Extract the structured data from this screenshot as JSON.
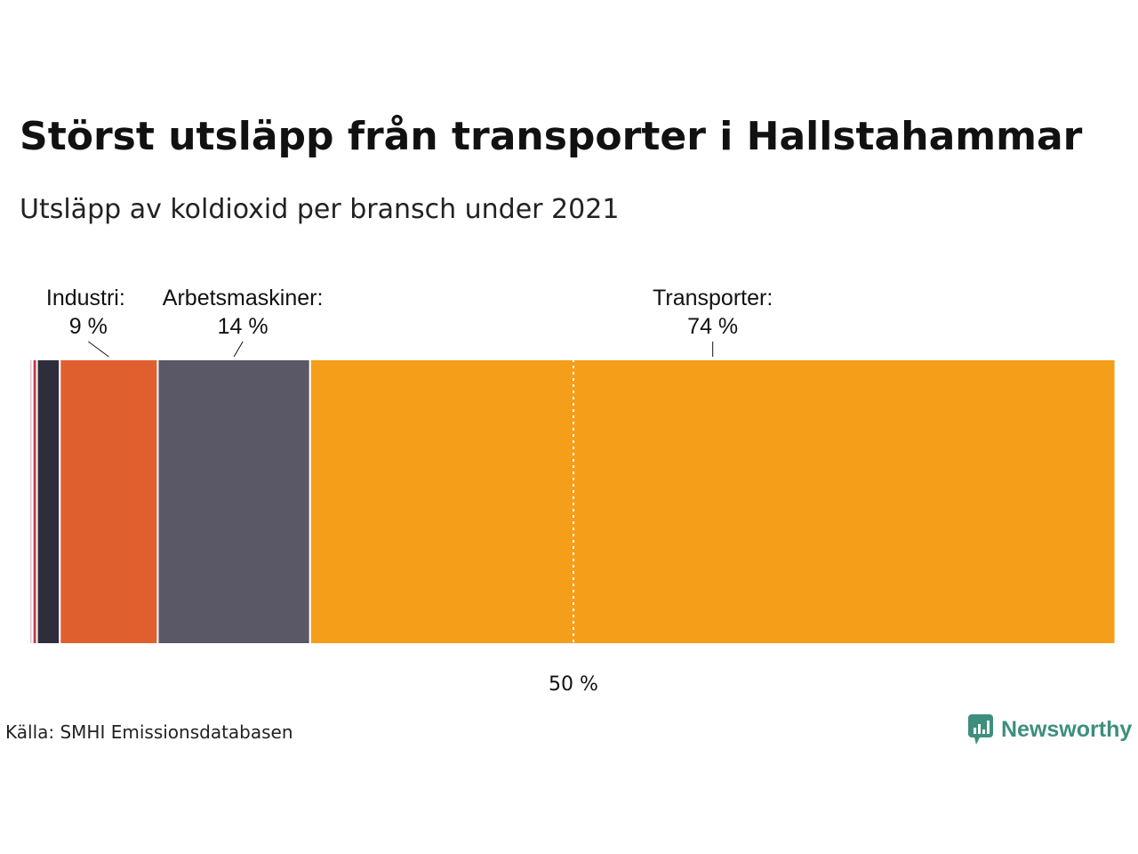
{
  "title": "Störst utsläpp från transporter i Hallstahammar",
  "subtitle": "Utsläpp av koldioxid per bransch under 2021",
  "source": "Källa: SMHI Emissionsdatabasen",
  "brand": "Newsworthy",
  "chart_data": {
    "type": "bar",
    "orientation": "horizontal-stacked",
    "xlim": [
      0,
      100
    ],
    "midline": 50,
    "midline_label": "50 %",
    "segments": [
      {
        "value": 0.3,
        "color": "#e8c3c8"
      },
      {
        "value": 0.4,
        "color": "#c0394b"
      },
      {
        "value": 2.1,
        "color": "#2e2d3c"
      },
      {
        "name": "Industri:",
        "value": 9,
        "label": "9 %",
        "color": "#e05f2e"
      },
      {
        "name": "Arbetsmaskiner:",
        "value": 14,
        "label": "14 %",
        "color": "#5a5866"
      },
      {
        "name": "Transporter:",
        "value": 74,
        "label": "74 %",
        "color": "#f59e1a"
      }
    ]
  }
}
